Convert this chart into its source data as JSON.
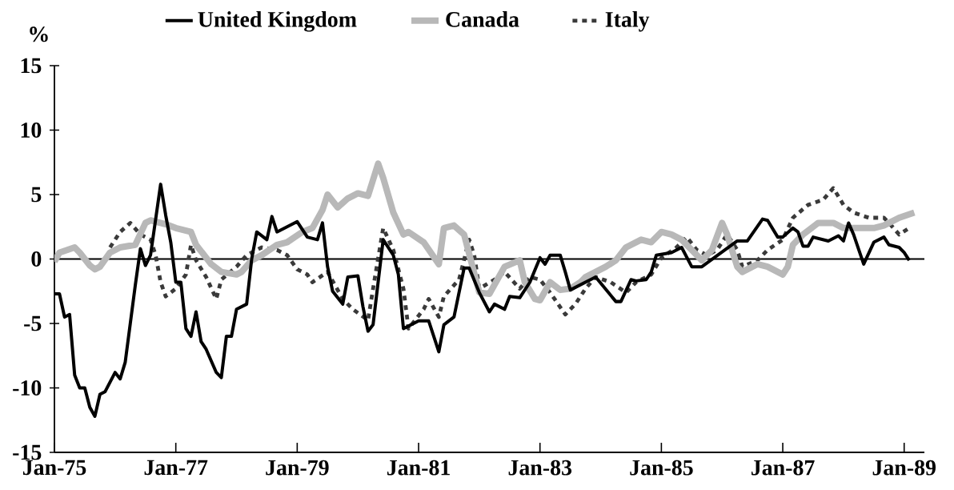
{
  "chart_data": {
    "type": "line",
    "ylabel": "%",
    "xlim": [
      "1975-01",
      "1989-05"
    ],
    "ylim": [
      -15,
      15
    ],
    "xticks": [
      {
        "value": "1975-01",
        "label": "Jan-75"
      },
      {
        "value": "1977-01",
        "label": "Jan-77"
      },
      {
        "value": "1979-01",
        "label": "Jan-79"
      },
      {
        "value": "1981-01",
        "label": "Jan-81"
      },
      {
        "value": "1983-01",
        "label": "Jan-83"
      },
      {
        "value": "1985-01",
        "label": "Jan-85"
      },
      {
        "value": "1987-01",
        "label": "Jan-87"
      },
      {
        "value": "1989-01",
        "label": "Jan-89"
      }
    ],
    "yticks": [
      15,
      10,
      5,
      0,
      -5,
      -10,
      -15
    ],
    "legend": "top",
    "ref_lines": [
      {
        "axis": "y",
        "value": 0,
        "color": "#000000"
      }
    ],
    "series": [
      {
        "name": "United Kingdom",
        "color": "#000000",
        "line_style": "solid",
        "x": [
          "1975-01",
          "1975-02",
          "1975-03",
          "1975-04",
          "1975-05",
          "1975-06",
          "1975-07",
          "1975-08",
          "1975-09",
          "1975-10",
          "1975-11",
          "1976-01",
          "1976-02",
          "1976-03",
          "1976-04",
          "1976-05",
          "1976-06",
          "1976-07",
          "1976-08",
          "1976-10",
          "1976-11",
          "1976-12",
          "1977-01",
          "1977-02",
          "1977-03",
          "1977-04",
          "1977-05",
          "1977-06",
          "1977-07",
          "1977-09",
          "1977-10",
          "1977-11",
          "1977-12",
          "1978-01",
          "1978-03",
          "1978-04",
          "1978-05",
          "1978-07",
          "1978-08",
          "1978-09",
          "1979-01",
          "1979-03",
          "1979-05",
          "1979-06",
          "1979-07",
          "1979-08",
          "1979-10",
          "1979-11",
          "1980-01",
          "1980-02",
          "1980-03",
          "1980-04",
          "1980-06",
          "1980-08",
          "1980-09",
          "1980-10",
          "1981-01",
          "1981-03",
          "1981-05",
          "1981-06",
          "1981-08",
          "1981-10",
          "1981-11",
          "1982-01",
          "1982-03",
          "1982-04",
          "1982-06",
          "1982-07",
          "1982-09",
          "1982-11",
          "1983-01",
          "1983-02",
          "1983-03",
          "1983-05",
          "1983-06",
          "1983-07",
          "1983-12",
          "1984-04",
          "1984-05",
          "1984-07",
          "1984-08",
          "1984-10",
          "1984-11",
          "1984-12",
          "1985-03",
          "1985-05",
          "1985-07",
          "1985-09",
          "1986-04",
          "1986-06",
          "1986-09",
          "1986-10",
          "1986-12",
          "1987-01",
          "1987-03",
          "1987-04",
          "1987-05",
          "1987-06",
          "1987-07",
          "1987-10",
          "1987-12",
          "1988-01",
          "1988-02",
          "1988-03",
          "1988-05",
          "1988-07",
          "1988-09",
          "1988-10",
          "1988-12",
          "1989-01",
          "1989-02"
        ],
        "values": [
          -2.7,
          -2.7,
          -4.5,
          -4.3,
          -9,
          -10,
          -10,
          -11.5,
          -12.2,
          -10.5,
          -10.3,
          -8.8,
          -9.3,
          -8,
          -5,
          -2,
          0.8,
          -0.5,
          0.3,
          5.8,
          3.4,
          1.3,
          -1.8,
          -1.8,
          -5.4,
          -6,
          -4.1,
          -6.4,
          -7,
          -8.8,
          -9.2,
          -6,
          -6,
          -3.9,
          -3.5,
          0,
          2.1,
          1.5,
          3.3,
          2.1,
          2.9,
          1.7,
          1.5,
          2.8,
          -0.6,
          -2.5,
          -3.5,
          -1.4,
          -1.3,
          -3.7,
          -5.6,
          -5.1,
          1.5,
          0.3,
          -1.2,
          -5.4,
          -4.8,
          -4.8,
          -7.2,
          -5.1,
          -4.5,
          -0.7,
          -0.7,
          -2.6,
          -4.1,
          -3.5,
          -3.9,
          -2.9,
          -3,
          -1.8,
          0.1,
          -0.4,
          0.3,
          0.3,
          -1,
          -2.4,
          -1.4,
          -3.3,
          -3.3,
          -1.6,
          -1.7,
          -1.6,
          -1,
          0.3,
          0.5,
          0.9,
          -0.6,
          -0.6,
          1.4,
          1.4,
          3.1,
          3,
          1.7,
          1.7,
          2.4,
          2.1,
          1,
          1,
          1.7,
          1.4,
          1.8,
          1.4,
          2.8,
          1.9,
          -0.4,
          1.3,
          1.7,
          1.1,
          0.9,
          0.5,
          -0.1
        ]
      },
      {
        "name": "Canada",
        "color": "#b8b8b8",
        "line_style": "solid",
        "x": [
          "1975-01",
          "1975-02",
          "1975-05",
          "1975-06",
          "1975-08",
          "1975-09",
          "1975-10",
          "1975-12",
          "1976-02",
          "1976-05",
          "1976-07",
          "1976-08",
          "1976-11",
          "1977-01",
          "1977-04",
          "1977-05",
          "1977-08",
          "1977-10",
          "1978-01",
          "1978-02",
          "1978-04",
          "1978-06",
          "1978-09",
          "1978-11",
          "1979-02",
          "1979-04",
          "1979-06",
          "1979-07",
          "1979-09",
          "1979-11",
          "1980-01",
          "1980-03",
          "1980-05",
          "1980-06",
          "1980-08",
          "1980-10",
          "1980-11",
          "1981-02",
          "1981-05",
          "1981-06",
          "1981-08",
          "1981-10",
          "1982-01",
          "1982-03",
          "1982-06",
          "1982-09",
          "1982-10",
          "1982-12",
          "1983-01",
          "1983-03",
          "1983-05",
          "1983-07",
          "1983-09",
          "1983-10",
          "1983-12",
          "1984-02",
          "1984-04",
          "1984-06",
          "1984-09",
          "1984-11",
          "1985-01",
          "1985-03",
          "1985-05",
          "1985-07",
          "1985-09",
          "1985-11",
          "1986-01",
          "1986-02",
          "1986-04",
          "1986-05",
          "1986-08",
          "1986-10",
          "1987-01",
          "1987-02",
          "1987-03",
          "1987-05",
          "1987-08",
          "1987-11",
          "1988-01",
          "1988-04",
          "1988-07",
          "1988-09",
          "1988-12",
          "1989-03"
        ],
        "values": [
          -0.2,
          0.5,
          0.9,
          0.5,
          -0.5,
          -0.8,
          -0.6,
          0.5,
          0.9,
          1.1,
          2.8,
          3,
          2.7,
          2.4,
          2.1,
          1.1,
          -0.4,
          -1,
          -1.2,
          -1,
          -0.1,
          0.3,
          1.1,
          1.3,
          2.1,
          2.4,
          3.8,
          5,
          4,
          4.7,
          5.1,
          4.9,
          7.4,
          6.3,
          3.6,
          1.9,
          2.1,
          1.3,
          -0.4,
          2.4,
          2.6,
          1.9,
          -2.6,
          -2.7,
          -0.6,
          -0.1,
          -1.8,
          -3.1,
          -3.2,
          -1.8,
          -2.4,
          -2.3,
          -1.8,
          -1.4,
          -1,
          -0.6,
          -0.1,
          0.9,
          1.5,
          1.3,
          2.1,
          1.9,
          1.5,
          0.7,
          -0.1,
          0.7,
          2.8,
          1.9,
          -0.6,
          -1,
          -0.4,
          -0.6,
          -1.2,
          -0.6,
          1.1,
          1.9,
          2.8,
          2.8,
          2.4,
          2.4,
          2.4,
          2.6,
          3.2,
          3.6
        ]
      },
      {
        "name": "Italy",
        "color": "#3a3a3a",
        "line_style": "dashed",
        "x": [
          "1975-12",
          "1976-02",
          "1976-04",
          "1976-06",
          "1976-08",
          "1976-09",
          "1976-10",
          "1976-11",
          "1977-01",
          "1977-03",
          "1977-04",
          "1977-05",
          "1977-07",
          "1977-09",
          "1977-10",
          "1978-01",
          "1978-03",
          "1978-06",
          "1978-09",
          "1978-11",
          "1979-01",
          "1979-03",
          "1979-04",
          "1979-07",
          "1979-10",
          "1979-12",
          "1980-03",
          "1980-04",
          "1980-06",
          "1980-08",
          "1980-10",
          "1980-11",
          "1981-02",
          "1981-03",
          "1981-05",
          "1981-06",
          "1981-09",
          "1981-11",
          "1981-12",
          "1982-01",
          "1982-04",
          "1982-06",
          "1982-09",
          "1982-11",
          "1983-01",
          "1983-03",
          "1983-06",
          "1983-08",
          "1983-10",
          "1983-12",
          "1984-03",
          "1984-06",
          "1984-08",
          "1984-11",
          "1985-01",
          "1985-04",
          "1985-06",
          "1985-08",
          "1985-10",
          "1985-12",
          "1986-02",
          "1986-04",
          "1986-05",
          "1986-08",
          "1986-10",
          "1987-01",
          "1987-03",
          "1987-06",
          "1987-09",
          "1987-11",
          "1988-01",
          "1988-03",
          "1988-06",
          "1988-09",
          "1988-10",
          "1988-12",
          "1989-02"
        ],
        "values": [
          0.9,
          2.1,
          2.8,
          1.9,
          1.5,
          0.3,
          -1.8,
          -2.9,
          -2.3,
          -1.2,
          1.1,
          -0.1,
          -1.4,
          -3.1,
          -1.6,
          -0.6,
          0.3,
          0.9,
          0.7,
          0.3,
          -0.8,
          -1.2,
          -1.8,
          -1,
          -3.1,
          -3.9,
          -4.75,
          -2.3,
          2.4,
          0.7,
          -2.3,
          -5.4,
          -3.9,
          -3.1,
          -4.5,
          -2.9,
          -1.6,
          1.5,
          0.3,
          -2.3,
          -1.6,
          -1,
          -2.3,
          -1.4,
          -1.6,
          -2.6,
          -4.3,
          -3.5,
          -2.3,
          -1.4,
          -1.8,
          -2.6,
          -1.8,
          -1.2,
          0.1,
          0.9,
          1.7,
          0.7,
          0.3,
          0.7,
          1.9,
          0.7,
          -0.6,
          -0.1,
          0.7,
          1.5,
          3.2,
          4.2,
          4.6,
          5.5,
          4.2,
          3.6,
          3.2,
          3.2,
          2.8,
          1.9,
          2.4
        ]
      }
    ]
  }
}
